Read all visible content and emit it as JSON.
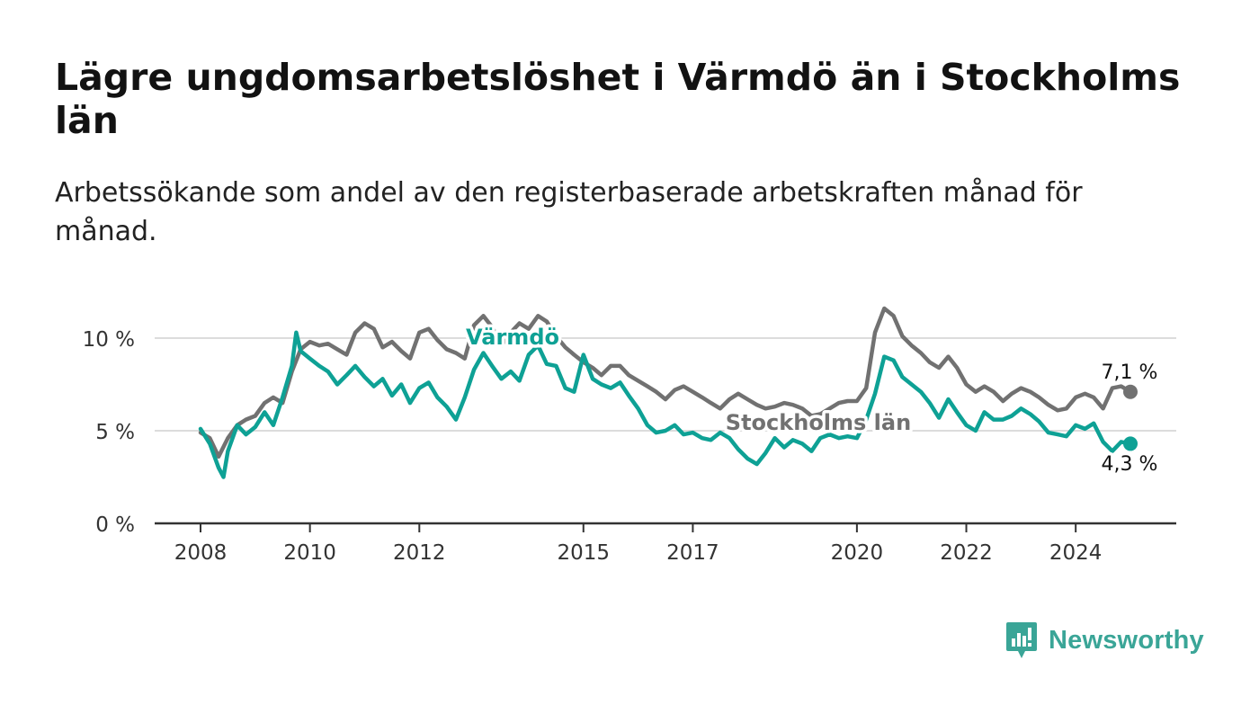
{
  "title": "Lägre ungdomsarbetslöshet i Värmdö än i Stockholms län",
  "subtitle": "Arbetssökande som andel av den registerbaserade arbetskraften månad för månad.",
  "logo_text": "Newsworthy",
  "colors": {
    "varmdo": "#0ea195",
    "stockholm": "#717171",
    "grid": "#dcdcdc",
    "axis": "#333333"
  },
  "chart_data": {
    "type": "line",
    "title": "Lägre ungdomsarbetslöshet i Värmdö än i Stockholms län",
    "subtitle": "Arbetssökande som andel av den registerbaserade arbetskraften månad för månad.",
    "xlabel": "",
    "ylabel": "",
    "x_range": [
      2008.0,
      2025.0
    ],
    "ylim": [
      0,
      12.5
    ],
    "x_ticks": [
      {
        "value": 2008.0,
        "label": "2008"
      },
      {
        "value": 2010.0,
        "label": "2010"
      },
      {
        "value": 2012.0,
        "label": "2012"
      },
      {
        "value": 2015.0,
        "label": "2015"
      },
      {
        "value": 2017.0,
        "label": "2017"
      },
      {
        "value": 2020.0,
        "label": "2020"
      },
      {
        "value": 2022.0,
        "label": "2022"
      },
      {
        "value": 2024.0,
        "label": "2024"
      }
    ],
    "y_ticks": [
      {
        "value": 0,
        "label": "0 %"
      },
      {
        "value": 5,
        "label": "5 %"
      },
      {
        "value": 10,
        "label": "10 %"
      }
    ],
    "grid": true,
    "legend": "direct labels on lines",
    "series": [
      {
        "name": "Stockholms län",
        "color": "#717171",
        "label": "Stockholms län",
        "end_label": "7,1 %",
        "points": [
          [
            2008.0,
            4.9
          ],
          [
            2008.17,
            4.6
          ],
          [
            2008.33,
            3.6
          ],
          [
            2008.5,
            4.6
          ],
          [
            2008.67,
            5.3
          ],
          [
            2008.83,
            5.6
          ],
          [
            2009.0,
            5.8
          ],
          [
            2009.17,
            6.5
          ],
          [
            2009.33,
            6.8
          ],
          [
            2009.5,
            6.5
          ],
          [
            2009.67,
            8.2
          ],
          [
            2009.83,
            9.4
          ],
          [
            2010.0,
            9.8
          ],
          [
            2010.17,
            9.6
          ],
          [
            2010.33,
            9.7
          ],
          [
            2010.5,
            9.4
          ],
          [
            2010.67,
            9.1
          ],
          [
            2010.83,
            10.3
          ],
          [
            2011.0,
            10.8
          ],
          [
            2011.17,
            10.5
          ],
          [
            2011.33,
            9.5
          ],
          [
            2011.5,
            9.8
          ],
          [
            2011.67,
            9.3
          ],
          [
            2011.83,
            8.9
          ],
          [
            2012.0,
            10.3
          ],
          [
            2012.17,
            10.5
          ],
          [
            2012.33,
            9.9
          ],
          [
            2012.5,
            9.4
          ],
          [
            2012.67,
            9.2
          ],
          [
            2012.83,
            8.9
          ],
          [
            2013.0,
            10.7
          ],
          [
            2013.17,
            11.2
          ],
          [
            2013.33,
            10.6
          ],
          [
            2013.5,
            9.6
          ],
          [
            2013.67,
            10.3
          ],
          [
            2013.83,
            10.8
          ],
          [
            2014.0,
            10.5
          ],
          [
            2014.17,
            11.2
          ],
          [
            2014.33,
            10.9
          ],
          [
            2014.5,
            10.1
          ],
          [
            2014.67,
            9.5
          ],
          [
            2014.83,
            9.1
          ],
          [
            2015.0,
            8.7
          ],
          [
            2015.17,
            8.4
          ],
          [
            2015.33,
            8.0
          ],
          [
            2015.5,
            8.5
          ],
          [
            2015.67,
            8.5
          ],
          [
            2015.83,
            8.0
          ],
          [
            2016.0,
            7.7
          ],
          [
            2016.17,
            7.4
          ],
          [
            2016.33,
            7.1
          ],
          [
            2016.5,
            6.7
          ],
          [
            2016.67,
            7.2
          ],
          [
            2016.83,
            7.4
          ],
          [
            2017.0,
            7.1
          ],
          [
            2017.17,
            6.8
          ],
          [
            2017.33,
            6.5
          ],
          [
            2017.5,
            6.2
          ],
          [
            2017.67,
            6.7
          ],
          [
            2017.83,
            7.0
          ],
          [
            2018.0,
            6.7
          ],
          [
            2018.17,
            6.4
          ],
          [
            2018.33,
            6.2
          ],
          [
            2018.5,
            6.3
          ],
          [
            2018.67,
            6.5
          ],
          [
            2018.83,
            6.4
          ],
          [
            2019.0,
            6.2
          ],
          [
            2019.17,
            5.8
          ],
          [
            2019.33,
            5.9
          ],
          [
            2019.5,
            6.2
          ],
          [
            2019.67,
            6.5
          ],
          [
            2019.83,
            6.6
          ],
          [
            2020.0,
            6.6
          ],
          [
            2020.17,
            7.3
          ],
          [
            2020.33,
            10.3
          ],
          [
            2020.5,
            11.6
          ],
          [
            2020.67,
            11.2
          ],
          [
            2020.83,
            10.1
          ],
          [
            2021.0,
            9.6
          ],
          [
            2021.17,
            9.2
          ],
          [
            2021.33,
            8.7
          ],
          [
            2021.5,
            8.4
          ],
          [
            2021.67,
            9.0
          ],
          [
            2021.83,
            8.4
          ],
          [
            2022.0,
            7.5
          ],
          [
            2022.17,
            7.1
          ],
          [
            2022.33,
            7.4
          ],
          [
            2022.5,
            7.1
          ],
          [
            2022.67,
            6.6
          ],
          [
            2022.83,
            7.0
          ],
          [
            2023.0,
            7.3
          ],
          [
            2023.17,
            7.1
          ],
          [
            2023.33,
            6.8
          ],
          [
            2023.5,
            6.4
          ],
          [
            2023.67,
            6.1
          ],
          [
            2023.83,
            6.2
          ],
          [
            2024.0,
            6.8
          ],
          [
            2024.17,
            7.0
          ],
          [
            2024.33,
            6.8
          ],
          [
            2024.5,
            6.2
          ],
          [
            2024.67,
            7.3
          ],
          [
            2024.83,
            7.4
          ],
          [
            2025.0,
            7.1
          ]
        ]
      },
      {
        "name": "Värmdö",
        "color": "#0ea195",
        "label": "Värmdö",
        "end_label": "4,3 %",
        "points": [
          [
            2008.0,
            5.1
          ],
          [
            2008.17,
            4.3
          ],
          [
            2008.33,
            3.0
          ],
          [
            2008.42,
            2.5
          ],
          [
            2008.5,
            3.9
          ],
          [
            2008.67,
            5.3
          ],
          [
            2008.83,
            4.8
          ],
          [
            2009.0,
            5.2
          ],
          [
            2009.17,
            6.0
          ],
          [
            2009.33,
            5.3
          ],
          [
            2009.5,
            6.8
          ],
          [
            2009.67,
            8.5
          ],
          [
            2009.75,
            10.3
          ],
          [
            2009.83,
            9.3
          ],
          [
            2010.0,
            8.9
          ],
          [
            2010.17,
            8.5
          ],
          [
            2010.33,
            8.2
          ],
          [
            2010.5,
            7.5
          ],
          [
            2010.67,
            8.0
          ],
          [
            2010.83,
            8.5
          ],
          [
            2011.0,
            7.9
          ],
          [
            2011.17,
            7.4
          ],
          [
            2011.33,
            7.8
          ],
          [
            2011.5,
            6.9
          ],
          [
            2011.67,
            7.5
          ],
          [
            2011.83,
            6.5
          ],
          [
            2012.0,
            7.3
          ],
          [
            2012.17,
            7.6
          ],
          [
            2012.33,
            6.8
          ],
          [
            2012.5,
            6.3
          ],
          [
            2012.67,
            5.6
          ],
          [
            2012.83,
            6.8
          ],
          [
            2013.0,
            8.3
          ],
          [
            2013.17,
            9.2
          ],
          [
            2013.33,
            8.5
          ],
          [
            2013.5,
            7.8
          ],
          [
            2013.67,
            8.2
          ],
          [
            2013.83,
            7.7
          ],
          [
            2014.0,
            9.1
          ],
          [
            2014.17,
            9.6
          ],
          [
            2014.33,
            8.6
          ],
          [
            2014.5,
            8.5
          ],
          [
            2014.67,
            7.3
          ],
          [
            2014.83,
            7.1
          ],
          [
            2015.0,
            9.1
          ],
          [
            2015.17,
            7.8
          ],
          [
            2015.33,
            7.5
          ],
          [
            2015.5,
            7.3
          ],
          [
            2015.67,
            7.6
          ],
          [
            2015.83,
            6.9
          ],
          [
            2016.0,
            6.2
          ],
          [
            2016.17,
            5.3
          ],
          [
            2016.33,
            4.9
          ],
          [
            2016.5,
            5.0
          ],
          [
            2016.67,
            5.3
          ],
          [
            2016.83,
            4.8
          ],
          [
            2017.0,
            4.9
          ],
          [
            2017.17,
            4.6
          ],
          [
            2017.33,
            4.5
          ],
          [
            2017.5,
            4.9
          ],
          [
            2017.67,
            4.6
          ],
          [
            2017.83,
            4.0
          ],
          [
            2018.0,
            3.5
          ],
          [
            2018.17,
            3.2
          ],
          [
            2018.33,
            3.8
          ],
          [
            2018.5,
            4.6
          ],
          [
            2018.67,
            4.1
          ],
          [
            2018.83,
            4.5
          ],
          [
            2019.0,
            4.3
          ],
          [
            2019.17,
            3.9
          ],
          [
            2019.33,
            4.6
          ],
          [
            2019.5,
            4.8
          ],
          [
            2019.67,
            4.6
          ],
          [
            2019.83,
            4.7
          ],
          [
            2020.0,
            4.6
          ],
          [
            2020.17,
            5.6
          ],
          [
            2020.33,
            7.0
          ],
          [
            2020.5,
            9.0
          ],
          [
            2020.67,
            8.8
          ],
          [
            2020.83,
            7.9
          ],
          [
            2021.0,
            7.5
          ],
          [
            2021.17,
            7.1
          ],
          [
            2021.33,
            6.5
          ],
          [
            2021.5,
            5.7
          ],
          [
            2021.67,
            6.7
          ],
          [
            2021.83,
            6.0
          ],
          [
            2022.0,
            5.3
          ],
          [
            2022.17,
            5.0
          ],
          [
            2022.33,
            6.0
          ],
          [
            2022.5,
            5.6
          ],
          [
            2022.67,
            5.6
          ],
          [
            2022.83,
            5.8
          ],
          [
            2023.0,
            6.2
          ],
          [
            2023.17,
            5.9
          ],
          [
            2023.33,
            5.5
          ],
          [
            2023.5,
            4.9
          ],
          [
            2023.67,
            4.8
          ],
          [
            2023.83,
            4.7
          ],
          [
            2024.0,
            5.3
          ],
          [
            2024.17,
            5.1
          ],
          [
            2024.33,
            5.4
          ],
          [
            2024.5,
            4.4
          ],
          [
            2024.67,
            3.9
          ],
          [
            2024.83,
            4.4
          ],
          [
            2025.0,
            4.3
          ]
        ]
      }
    ]
  }
}
